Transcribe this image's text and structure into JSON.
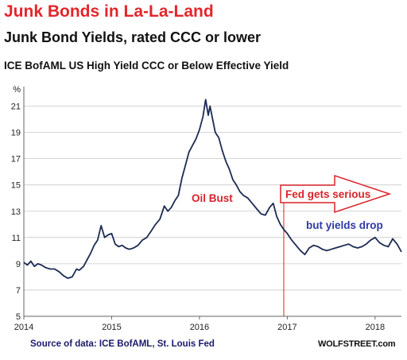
{
  "header": {
    "title": "Junk Bonds in La-La-Land",
    "subtitle": "Junk Bond Yields, rated CCC or lower",
    "series_title": "ICE BofAML US High Yield CCC or Below Effective Yield"
  },
  "footer": {
    "source": "Source of data: ICE BofAML, St. Louis Fed",
    "brand": "WOLFSTREET.com"
  },
  "colors": {
    "title": "#e3262b",
    "line": "#1c2b52",
    "annotation_red": "#d8232a",
    "annotation_blue": "#2f3aa6"
  },
  "chart_data": {
    "type": "line",
    "title": "ICE BofAML US High Yield CCC or Below Effective Yield",
    "xlabel": "",
    "ylabel": "%",
    "x_range": [
      2014.0,
      2018.3
    ],
    "ylim": [
      5,
      22
    ],
    "x_ticks": [
      "2014",
      "2015",
      "2016",
      "2017",
      "2018"
    ],
    "y_ticks": [
      "5",
      "7",
      "9",
      "11",
      "13",
      "15",
      "17",
      "19",
      "21"
    ],
    "grid": "horizontal",
    "series": [
      {
        "x": [
          2014.0,
          2014.04,
          2014.08,
          2014.12,
          2014.16,
          2014.2,
          2014.25,
          2014.3,
          2014.35,
          2014.4,
          2014.45,
          2014.5,
          2014.55,
          2014.6,
          2014.63,
          2014.68,
          2014.72,
          2014.76,
          2014.8,
          2014.84,
          2014.88,
          2014.92,
          2014.96,
          2015.0,
          2015.04,
          2015.08,
          2015.12,
          2015.16,
          2015.2,
          2015.25,
          2015.3,
          2015.35,
          2015.4,
          2015.45,
          2015.5,
          2015.55,
          2015.6,
          2015.64,
          2015.68,
          2015.72,
          2015.76,
          2015.8,
          2015.84,
          2015.88,
          2015.92,
          2015.96,
          2016.0,
          2016.04,
          2016.07,
          2016.1,
          2016.12,
          2016.15,
          2016.18,
          2016.22,
          2016.26,
          2016.3,
          2016.34,
          2016.38,
          2016.42,
          2016.46,
          2016.5,
          2016.55,
          2016.6,
          2016.65,
          2016.7,
          2016.75,
          2016.8,
          2016.84,
          2016.88,
          2016.92,
          2016.96,
          2017.0,
          2017.05,
          2017.1,
          2017.15,
          2017.2,
          2017.25,
          2017.3,
          2017.35,
          2017.4,
          2017.45,
          2017.5,
          2017.55,
          2017.6,
          2017.65,
          2017.7,
          2017.75,
          2017.8,
          2017.85,
          2017.9,
          2017.95,
          2018.0,
          2018.05,
          2018.1,
          2018.15,
          2018.2,
          2018.25,
          2018.3
        ],
        "y": [
          9.1,
          8.9,
          9.2,
          8.8,
          9.0,
          8.9,
          8.7,
          8.6,
          8.6,
          8.4,
          8.1,
          7.9,
          8.0,
          8.6,
          8.5,
          8.8,
          9.3,
          9.8,
          10.4,
          10.8,
          11.9,
          11.0,
          11.2,
          11.3,
          10.5,
          10.3,
          10.4,
          10.2,
          10.1,
          10.2,
          10.4,
          10.8,
          11.0,
          11.5,
          12.0,
          12.4,
          13.4,
          13.0,
          13.3,
          13.8,
          14.2,
          15.5,
          16.5,
          17.5,
          18.0,
          18.5,
          19.2,
          20.2,
          21.5,
          20.3,
          21.0,
          20.0,
          19.0,
          18.6,
          17.6,
          16.8,
          16.2,
          15.4,
          15.0,
          14.5,
          14.2,
          14.0,
          13.6,
          13.2,
          12.8,
          12.7,
          13.3,
          13.6,
          12.6,
          12.0,
          11.6,
          11.3,
          10.8,
          10.4,
          10.0,
          9.7,
          10.2,
          10.4,
          10.3,
          10.1,
          10.0,
          10.1,
          10.2,
          10.3,
          10.4,
          10.5,
          10.3,
          10.2,
          10.3,
          10.5,
          10.8,
          11.0,
          10.6,
          10.4,
          10.3,
          10.9,
          10.5,
          9.9
        ]
      }
    ],
    "annotations": [
      {
        "text": "Oil Bust",
        "color": "red"
      },
      {
        "text": "Fed gets serious",
        "color": "red"
      },
      {
        "text": "but yields drop",
        "color": "blue"
      }
    ],
    "event_marker_x": 2016.96
  }
}
